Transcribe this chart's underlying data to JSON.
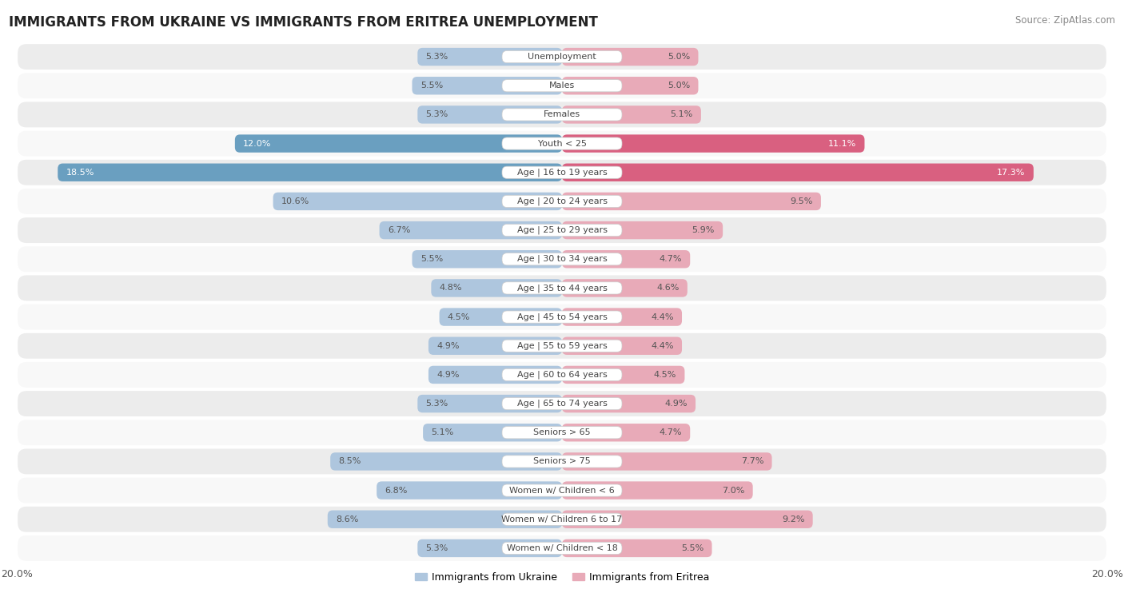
{
  "title": "IMMIGRANTS FROM UKRAINE VS IMMIGRANTS FROM ERITREA UNEMPLOYMENT",
  "source": "Source: ZipAtlas.com",
  "categories": [
    "Unemployment",
    "Males",
    "Females",
    "Youth < 25",
    "Age | 16 to 19 years",
    "Age | 20 to 24 years",
    "Age | 25 to 29 years",
    "Age | 30 to 34 years",
    "Age | 35 to 44 years",
    "Age | 45 to 54 years",
    "Age | 55 to 59 years",
    "Age | 60 to 64 years",
    "Age | 65 to 74 years",
    "Seniors > 65",
    "Seniors > 75",
    "Women w/ Children < 6",
    "Women w/ Children 6 to 17",
    "Women w/ Children < 18"
  ],
  "ukraine_values": [
    5.3,
    5.5,
    5.3,
    12.0,
    18.5,
    10.6,
    6.7,
    5.5,
    4.8,
    4.5,
    4.9,
    4.9,
    5.3,
    5.1,
    8.5,
    6.8,
    8.6,
    5.3
  ],
  "eritrea_values": [
    5.0,
    5.0,
    5.1,
    11.1,
    17.3,
    9.5,
    5.9,
    4.7,
    4.6,
    4.4,
    4.4,
    4.5,
    4.9,
    4.7,
    7.7,
    7.0,
    9.2,
    5.5
  ],
  "ukraine_color": "#aec6de",
  "eritrea_color": "#e8aab8",
  "ukraine_highlight_color": "#6a9fc0",
  "eritrea_highlight_color": "#d96080",
  "highlight_rows": [
    3,
    4
  ],
  "xlim": 20.0,
  "bar_height": 0.62,
  "bg_color_even": "#ececec",
  "bg_color_odd": "#f8f8f8",
  "label_ukraine": "Immigrants from Ukraine",
  "label_eritrea": "Immigrants from Eritrea",
  "title_fontsize": 12,
  "source_fontsize": 8.5,
  "value_fontsize": 8,
  "category_fontsize": 8
}
